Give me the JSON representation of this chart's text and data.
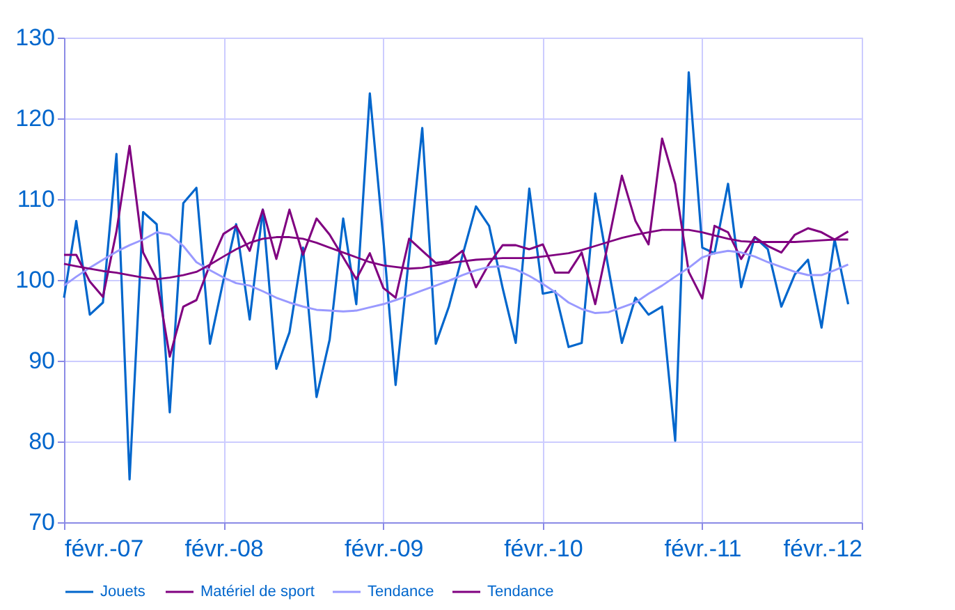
{
  "chart_data": {
    "type": "line",
    "x": [
      "2007-02",
      "2007-03",
      "2007-04",
      "2007-05",
      "2007-06",
      "2007-07",
      "2007-08",
      "2007-09",
      "2007-10",
      "2007-11",
      "2007-12",
      "2008-01",
      "2008-02",
      "2008-03",
      "2008-04",
      "2008-05",
      "2008-06",
      "2008-07",
      "2008-08",
      "2008-09",
      "2008-10",
      "2008-11",
      "2008-12",
      "2009-01",
      "2009-02",
      "2009-03",
      "2009-04",
      "2009-05",
      "2009-06",
      "2009-07",
      "2009-08",
      "2009-09",
      "2009-10",
      "2009-11",
      "2009-12",
      "2010-01",
      "2010-02",
      "2010-03",
      "2010-04",
      "2010-05",
      "2010-06",
      "2010-07",
      "2010-08",
      "2010-09",
      "2010-10",
      "2010-11",
      "2010-12",
      "2011-01",
      "2011-02",
      "2011-03",
      "2011-04",
      "2011-05",
      "2011-06",
      "2011-07",
      "2011-08",
      "2011-09",
      "2011-10",
      "2011-11",
      "2011-12",
      "2012-01"
    ],
    "series": [
      {
        "name": "Jouets",
        "color": "#0066cc",
        "values": [
          97.8,
          107.3,
          95.7,
          97.2,
          115.6,
          75.3,
          108.4,
          106.9,
          83.6,
          109.5,
          111.4,
          92.1,
          100.0,
          106.9,
          95.1,
          108.7,
          89.0,
          93.5,
          104.0,
          85.5,
          92.6,
          107.6,
          97.0,
          123.1,
          105.0,
          87.0,
          103.0,
          118.8,
          92.1,
          96.7,
          103.0,
          109.1,
          106.7,
          99.0,
          92.2,
          111.3,
          98.3,
          98.6,
          91.7,
          92.2,
          110.7,
          101.5,
          92.2,
          97.8,
          95.7,
          96.7,
          80.1,
          125.7,
          104.0,
          103.3,
          111.9,
          99.1,
          105.3,
          103.8,
          96.7,
          100.7,
          102.5,
          94.1,
          105.0,
          97.0
        ]
      },
      {
        "name": "Matériel de sport",
        "color": "#800080",
        "values": [
          103.1,
          103.1,
          99.8,
          97.9,
          106.0,
          116.6,
          103.4,
          100.1,
          90.5,
          96.7,
          97.5,
          101.9,
          105.7,
          106.7,
          103.6,
          108.7,
          102.6,
          108.7,
          103.1,
          107.6,
          105.6,
          102.8,
          100.1,
          103.3,
          99.0,
          97.8,
          105.1,
          103.6,
          102.1,
          102.3,
          103.6,
          99.1,
          102.0,
          104.3,
          104.3,
          103.8,
          104.4,
          100.9,
          100.9,
          103.4,
          97.0,
          104.7,
          112.9,
          107.3,
          104.4,
          117.5,
          111.9,
          101.0,
          97.7,
          106.7,
          105.9,
          102.6,
          105.3,
          104.2,
          103.4,
          105.6,
          106.4,
          105.9,
          105.0,
          106.0
        ]
      },
      {
        "name": "Tendance",
        "color": "#9999ff",
        "values": [
          99.3,
          100.4,
          101.5,
          102.5,
          103.5,
          104.3,
          105.0,
          105.9,
          105.6,
          104.2,
          102.2,
          101.2,
          100.3,
          99.6,
          99.3,
          98.6,
          97.8,
          97.2,
          96.7,
          96.3,
          96.2,
          96.1,
          96.2,
          96.6,
          97.0,
          97.5,
          98.1,
          98.7,
          99.3,
          99.9,
          100.6,
          101.2,
          101.6,
          101.7,
          101.3,
          100.5,
          99.5,
          98.5,
          97.2,
          96.4,
          95.9,
          96.0,
          96.6,
          97.2,
          98.3,
          99.3,
          100.4,
          101.5,
          102.8,
          103.3,
          103.6,
          103.4,
          102.9,
          102.2,
          101.6,
          101.0,
          100.6,
          100.6,
          101.2,
          101.9
        ]
      },
      {
        "name": "Tendance",
        "color": "#800080",
        "values": [
          102.0,
          101.7,
          101.4,
          101.1,
          100.9,
          100.6,
          100.3,
          100.1,
          100.3,
          100.6,
          101.0,
          101.9,
          102.9,
          103.8,
          104.6,
          105.1,
          105.3,
          105.3,
          105.1,
          104.6,
          104.0,
          103.4,
          102.8,
          102.2,
          101.8,
          101.6,
          101.4,
          101.5,
          101.8,
          102.1,
          102.3,
          102.5,
          102.6,
          102.7,
          102.7,
          102.7,
          102.9,
          103.1,
          103.3,
          103.7,
          104.2,
          104.7,
          105.2,
          105.6,
          105.9,
          106.2,
          106.2,
          106.2,
          105.9,
          105.5,
          105.1,
          104.8,
          104.7,
          104.7,
          104.7,
          104.7,
          104.8,
          104.9,
          105.0,
          105.0
        ]
      }
    ],
    "xlim": [
      "2007-02",
      "2012-02"
    ],
    "xticks": [
      {
        "value": "2007-02",
        "label": "févr.-07"
      },
      {
        "value": "2008-02",
        "label": "févr.-08"
      },
      {
        "value": "2009-02",
        "label": "févr.-09"
      },
      {
        "value": "2010-02",
        "label": "févr.-10"
      },
      {
        "value": "2011-02",
        "label": "févr.-11"
      },
      {
        "value": "2012-02",
        "label": "févr.-12"
      }
    ],
    "ylim": [
      70,
      130
    ],
    "yticks": [
      70,
      80,
      90,
      100,
      110,
      120,
      130
    ],
    "grid": true,
    "legend": "bottom",
    "marker": "none",
    "line_style": "solid"
  }
}
